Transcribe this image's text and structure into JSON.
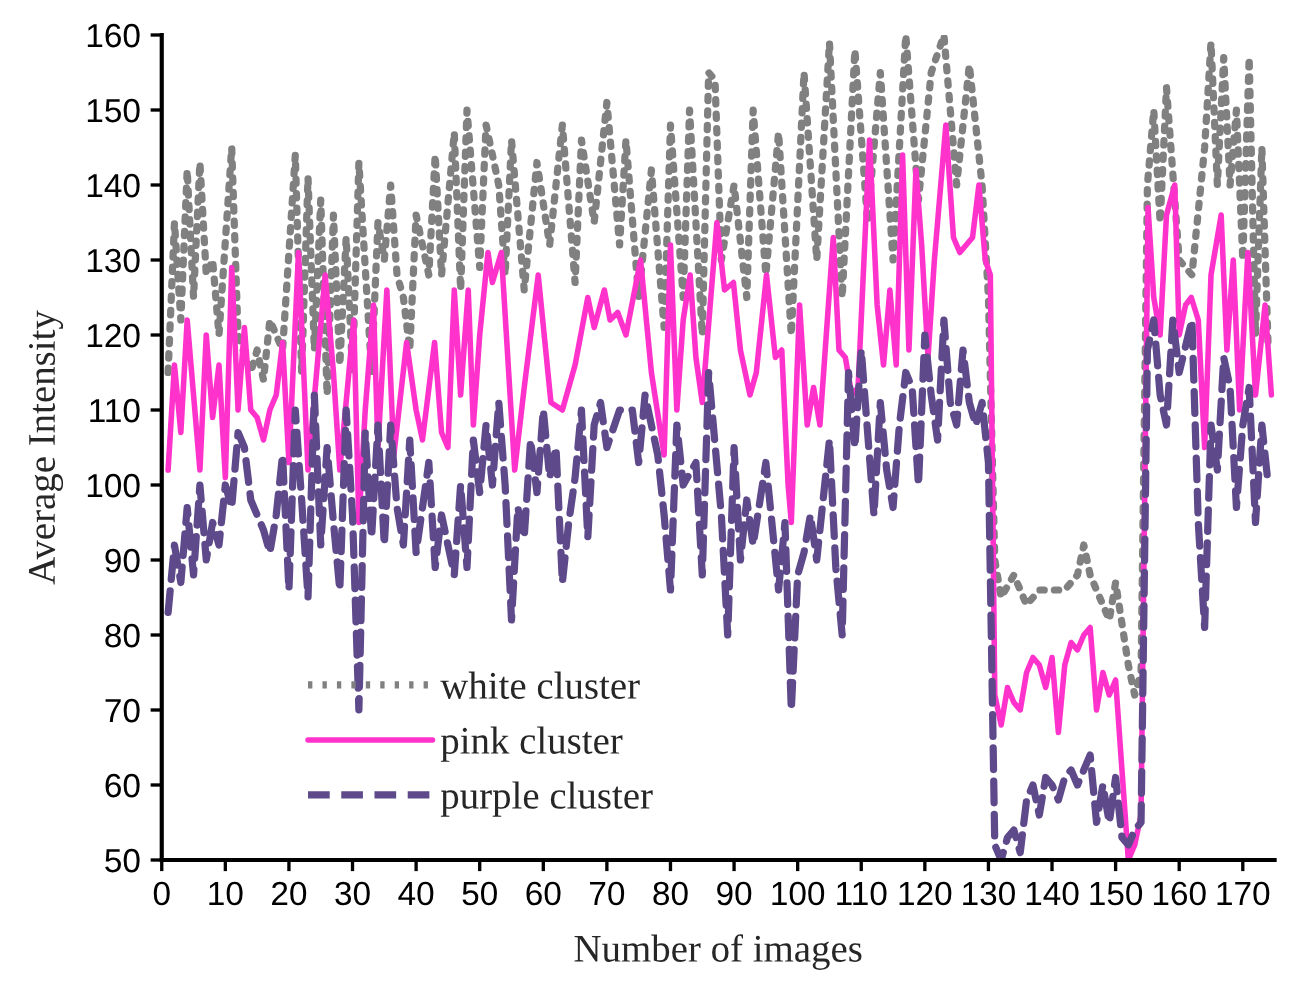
{
  "chart_data": {
    "type": "line",
    "xlabel": "Number of images",
    "ylabel": "Average Intensity",
    "xlim": [
      0,
      175
    ],
    "xticks": [
      0,
      10,
      20,
      30,
      40,
      50,
      60,
      70,
      80,
      90,
      100,
      110,
      120,
      130,
      140,
      150,
      160,
      170
    ],
    "ylim": [
      50,
      160
    ],
    "yticks": [
      50,
      60,
      70,
      80,
      90,
      100,
      110,
      120,
      130,
      140,
      150,
      160
    ],
    "grid": false,
    "legend": "bottom left",
    "series": [
      {
        "name": "white cluster",
        "color": "#808080",
        "line_style": "dotted",
        "x": [
          1,
          2,
          3,
          4,
          5,
          6,
          7,
          8,
          9,
          11,
          12,
          14,
          15,
          16,
          17,
          19,
          21,
          22,
          23,
          24,
          25,
          26,
          27,
          28,
          29,
          30,
          31,
          33,
          34,
          35,
          36,
          37,
          38,
          39,
          40,
          42,
          43,
          44,
          46,
          47,
          48,
          50,
          51,
          53,
          54,
          55,
          57,
          59,
          61,
          63,
          65,
          66,
          68,
          70,
          72,
          73,
          75,
          77,
          79,
          80,
          82,
          83,
          85,
          86,
          87,
          88,
          90,
          92,
          93,
          95,
          97,
          99,
          101,
          103,
          105,
          107,
          109,
          111,
          113,
          115,
          117,
          119,
          121,
          123,
          125,
          127,
          129,
          130,
          131,
          132,
          134,
          136,
          138,
          140,
          142,
          144,
          145,
          146,
          148,
          149,
          150,
          152,
          153,
          154,
          155,
          156,
          157,
          158,
          160,
          162,
          164,
          165,
          166,
          167,
          168,
          169,
          170,
          171,
          172,
          173,
          174
        ],
        "values": [
          115,
          135,
          122,
          142,
          125,
          143,
          128,
          130,
          120,
          145,
          120,
          115,
          118,
          114,
          122,
          118,
          144,
          115,
          141,
          118,
          138,
          112,
          136,
          116,
          133,
          115,
          143,
          115,
          135,
          130,
          140,
          128,
          125,
          118,
          136,
          128,
          144,
          128,
          147,
          126,
          150,
          129,
          148,
          140,
          128,
          146,
          126,
          143,
          132,
          148,
          127,
          146,
          135,
          151,
          132,
          146,
          125,
          142,
          121,
          148,
          125,
          150,
          120,
          155,
          154,
          130,
          140,
          125,
          150,
          128,
          147,
          120,
          155,
          130,
          159,
          125,
          158,
          135,
          155,
          130,
          160,
          138,
          155,
          160,
          140,
          156,
          140,
          125,
          90,
          85,
          88,
          84,
          86,
          86,
          86,
          88,
          92,
          88,
          84,
          82,
          87,
          76,
          72,
          75,
          140,
          150,
          135,
          153,
          130,
          128,
          145,
          159,
          140,
          157,
          140,
          150,
          130,
          157,
          120,
          145,
          118
        ]
      },
      {
        "name": "pink cluster",
        "color": "#ff33cc",
        "line_style": "solid",
        "x": [
          1,
          2,
          3,
          4,
          5,
          6,
          7,
          8,
          9,
          10,
          11,
          12,
          13,
          14,
          15,
          16,
          17,
          18,
          19,
          20,
          21.5,
          23,
          25.7,
          27,
          28,
          30.2,
          31,
          32,
          33.3,
          34,
          35.4,
          36.5,
          38.5,
          40,
          41,
          42.9,
          44,
          45,
          46,
          47,
          48.2,
          49,
          50,
          51.3,
          52,
          53.4,
          55.5,
          57,
          59.2,
          61.2,
          63,
          65,
          67,
          68,
          69.6,
          70.5,
          71.7,
          73,
          75.3,
          77,
          79,
          80,
          81,
          82,
          83.1,
          84,
          85,
          87.3,
          88.5,
          89.9,
          91,
          92.5,
          93.5,
          95.1,
          96.5,
          97.5,
          98.5,
          99,
          100.3,
          101.5,
          102.5,
          103.5,
          104.5,
          105.6,
          106.5,
          107.5,
          108.5,
          109.5,
          111.3,
          112.5,
          113.5,
          114.5,
          115.5,
          116.5,
          117.5,
          118.6,
          119.5,
          120.5,
          121.5,
          123.3,
          124.5,
          125.5,
          126.5,
          127.5,
          128.5,
          129.5,
          130.3,
          131,
          132,
          133,
          134,
          135,
          136,
          137,
          138,
          139,
          140,
          141,
          142,
          143,
          144,
          145,
          146,
          147,
          148,
          149,
          150,
          151,
          152,
          153,
          154,
          155.1,
          156,
          157,
          158,
          159.3,
          160,
          161,
          161.9,
          163,
          164,
          165,
          166.6,
          167.5,
          168.5,
          169.5,
          170.8,
          172,
          173.5,
          174.5
        ],
        "values": [
          102,
          116,
          107,
          122,
          112,
          102,
          120,
          109,
          116,
          101,
          129,
          110,
          121,
          110,
          109,
          106,
          110,
          112,
          119,
          103,
          131,
          102,
          128,
          115,
          102,
          122,
          95,
          110,
          124,
          105,
          126,
          104,
          119,
          110,
          106,
          119,
          107,
          105,
          126,
          112,
          126,
          108,
          120,
          131,
          127,
          131,
          102,
          113,
          128,
          111,
          110,
          116,
          125,
          121,
          126,
          122,
          123,
          120,
          130,
          115,
          104,
          132,
          110,
          122,
          128,
          117,
          111,
          135,
          126,
          127,
          118,
          112,
          115,
          128,
          117,
          118,
          100,
          95,
          124,
          108,
          113,
          108,
          120,
          133,
          118,
          117,
          112,
          113,
          146,
          124,
          116,
          126,
          116,
          144,
          118,
          142,
          132,
          117,
          130,
          148,
          133,
          131,
          132,
          133,
          140,
          130,
          128,
          72,
          68,
          73,
          71,
          70,
          75,
          77,
          76,
          73,
          77,
          67,
          76,
          79,
          78,
          80,
          81,
          70,
          75,
          72,
          74,
          62,
          50,
          52,
          56,
          137,
          125,
          120,
          136,
          140,
          120,
          124,
          125,
          122,
          105,
          128,
          136,
          118,
          130,
          110,
          131,
          112,
          124,
          112
        ]
      },
      {
        "name": "purple cluster",
        "color": "#5e4a8a",
        "line_style": "dashed",
        "x": [
          1,
          2,
          3,
          4,
          5,
          6,
          7,
          8,
          9,
          10,
          11,
          12,
          13,
          14,
          15,
          16,
          17,
          18,
          19,
          20,
          21,
          22,
          23,
          24,
          25,
          26,
          27,
          28,
          29,
          30,
          31,
          32,
          33,
          34,
          35,
          36,
          37,
          38,
          39,
          40,
          41,
          42,
          43,
          44,
          45,
          46,
          47,
          48,
          49,
          50,
          51,
          52,
          53,
          54,
          55,
          56,
          57,
          58,
          59,
          60,
          61,
          62,
          63,
          64,
          65,
          66,
          67,
          68,
          69,
          70,
          72,
          74,
          75,
          76,
          78,
          79,
          80,
          81,
          82,
          84,
          85,
          86,
          88,
          89,
          90,
          91,
          92,
          93,
          95,
          97,
          98,
          99,
          100,
          101,
          102,
          103,
          105,
          106,
          107,
          108,
          109,
          110,
          111,
          112,
          113,
          114,
          115,
          116,
          117,
          118,
          119,
          120,
          121,
          122,
          123,
          124,
          125,
          126,
          127,
          128,
          129,
          130,
          131,
          132,
          133,
          134,
          135,
          136,
          137,
          138,
          139,
          140,
          141,
          142,
          143,
          144,
          145,
          146,
          147,
          148,
          149,
          150,
          151,
          152,
          153,
          154,
          155,
          156,
          157,
          158,
          159,
          160,
          162,
          163,
          164,
          165,
          166,
          167,
          168,
          169,
          170,
          171,
          172,
          173,
          174
        ],
        "values": [
          83,
          92,
          87,
          97,
          88,
          100,
          90,
          95,
          92,
          100,
          97,
          107,
          105,
          98,
          96,
          94,
          91,
          96,
          104,
          86,
          110,
          98,
          85,
          112,
          92,
          105,
          95,
          86,
          110,
          96,
          70,
          107,
          93,
          108,
          92,
          108,
          97,
          92,
          106,
          91,
          97,
          103,
          89,
          96,
          92,
          88,
          100,
          89,
          106,
          99,
          108,
          100,
          111,
          100,
          82,
          97,
          93,
          106,
          99,
          110,
          101,
          105,
          87,
          95,
          101,
          110,
          93,
          108,
          111,
          105,
          110,
          110,
          103,
          112,
          104,
          96,
          86,
          108,
          100,
          103,
          88,
          115,
          96,
          80,
          105,
          90,
          98,
          92,
          103,
          86,
          95,
          70,
          88,
          91,
          96,
          90,
          106,
          89,
          80,
          115,
          105,
          118,
          107,
          96,
          111,
          102,
          97,
          108,
          115,
          113,
          100,
          120,
          112,
          106,
          122,
          111,
          108,
          118,
          111,
          108,
          111,
          103,
          52,
          50,
          53,
          54,
          51,
          58,
          60,
          56,
          61,
          60,
          58,
          61,
          62,
          60,
          62,
          64,
          55,
          60,
          55,
          61,
          53,
          52,
          54,
          55,
          118,
          122,
          112,
          108,
          122,
          115,
          122,
          95,
          81,
          108,
          102,
          117,
          113,
          97,
          108,
          113,
          95,
          108,
          100
        ]
      }
    ]
  }
}
